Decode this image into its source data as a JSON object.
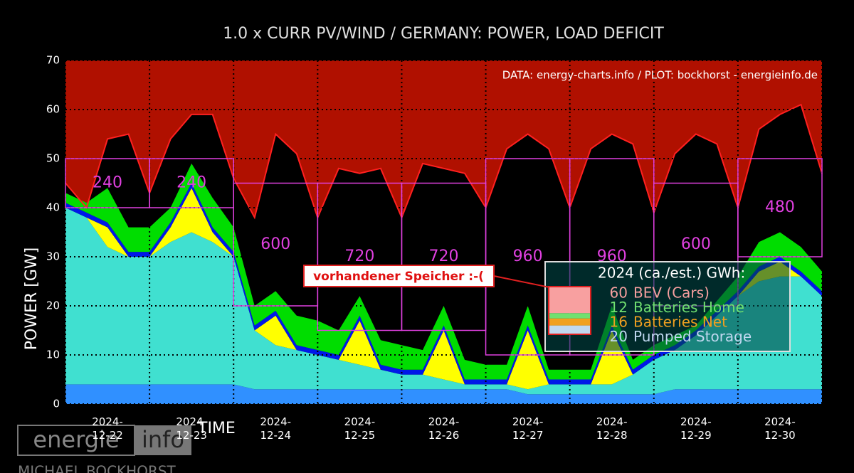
{
  "chart_data": {
    "type": "area",
    "title": "1.0 x CURR PV/WIND / GERMANY: POWER, LOAD  DEFICIT",
    "source": "DATA: energy-charts.info / PLOT: bockhorst - energieinfo.de",
    "y_label": "POWER [GW]",
    "x_label": "TIME",
    "xlim": [
      0,
      9
    ],
    "ylim": [
      0,
      70
    ],
    "yticks": [
      0,
      10,
      20,
      30,
      40,
      50,
      60,
      70
    ],
    "xgrid": [
      0,
      1,
      2,
      3,
      4,
      5,
      6,
      7,
      8,
      9
    ],
    "xticks": [
      {
        "value": 0.5,
        "label": "2024-12-22"
      },
      {
        "value": 1.5,
        "label": "2024-12-23"
      },
      {
        "value": 2.5,
        "label": "2024-12-24"
      },
      {
        "value": 3.5,
        "label": "2024-12-25"
      },
      {
        "value": 4.5,
        "label": "2024-12-26"
      },
      {
        "value": 5.5,
        "label": "2024-12-27"
      },
      {
        "value": 6.5,
        "label": "2024-12-28"
      },
      {
        "value": 7.5,
        "label": "2024-12-29"
      },
      {
        "value": 8.5,
        "label": "2024-12-30"
      }
    ],
    "grid": true,
    "x": [
      0,
      0.25,
      0.5,
      0.75,
      1,
      1.25,
      1.5,
      1.75,
      2,
      2.25,
      2.5,
      2.75,
      3,
      3.25,
      3.5,
      3.75,
      4,
      4.25,
      4.5,
      4.75,
      5,
      5.25,
      5.5,
      5.75,
      6,
      6.25,
      6.5,
      6.75,
      7,
      7.25,
      7.5,
      7.75,
      8,
      8.25,
      8.5,
      8.75,
      9
    ],
    "series": [
      {
        "color": "#3090ff",
        "values": [
          4,
          4,
          4,
          4,
          4,
          4,
          4,
          4,
          4,
          3,
          3,
          3,
          3,
          3,
          3,
          3,
          3,
          3,
          3,
          3,
          3,
          3,
          2,
          2,
          2,
          2,
          2,
          2,
          2,
          3,
          3,
          3,
          3,
          3,
          3,
          3,
          3
        ]
      },
      {
        "color": "#40e0d0",
        "values": [
          36,
          34,
          28,
          26,
          26,
          29,
          31,
          29,
          26,
          12,
          9,
          8,
          7,
          6,
          5,
          4,
          3,
          3,
          2,
          1,
          1,
          1,
          1,
          2,
          2,
          2,
          2,
          4,
          7,
          8,
          11,
          15,
          19,
          22,
          23,
          23,
          19
        ]
      },
      {
        "color": "#ffff00",
        "values": [
          0,
          0,
          4,
          0,
          0,
          3,
          9,
          2,
          0,
          0,
          6,
          0,
          0,
          0,
          9,
          0,
          0,
          0,
          10,
          0,
          0,
          0,
          12,
          0,
          0,
          0,
          11,
          0,
          0,
          0,
          0,
          0,
          0,
          2,
          3,
          0,
          0
        ]
      },
      {
        "color": "#0018e8",
        "values": [
          1,
          1,
          1,
          1,
          1,
          1,
          1,
          1,
          1,
          1,
          1,
          1,
          1,
          1,
          1,
          1,
          1,
          1,
          1,
          1,
          1,
          1,
          1,
          1,
          1,
          1,
          1,
          1,
          1,
          1,
          1,
          1,
          1,
          1,
          1,
          1,
          1
        ]
      },
      {
        "color": "#00dd00",
        "values": [
          2,
          2,
          7,
          5,
          5,
          3,
          4,
          6,
          5,
          4,
          4,
          6,
          6,
          5,
          4,
          5,
          5,
          4,
          4,
          4,
          3,
          3,
          4,
          2,
          2,
          2,
          4,
          2,
          2,
          2,
          1,
          2,
          3,
          5,
          5,
          5,
          4
        ]
      }
    ],
    "load": {
      "color": "#ff2020",
      "fill": "#b01000",
      "values": [
        45,
        40,
        54,
        55,
        43,
        54,
        59,
        59,
        46,
        38,
        55,
        51,
        38,
        48,
        47,
        48,
        38,
        49,
        48,
        47,
        40,
        52,
        55,
        52,
        40,
        52,
        55,
        53,
        39,
        51,
        55,
        53,
        40,
        56,
        59,
        61,
        47
      ]
    },
    "boxes_color": "#e040e0",
    "boxes": [
      {
        "ylim": [
          40,
          50
        ],
        "value": 240
      },
      {
        "ylim": [
          40,
          50
        ],
        "value": 240
      },
      {
        "ylim": [
          20,
          45
        ],
        "value": 600
      },
      {
        "ylim": [
          15,
          45
        ],
        "value": 720
      },
      {
        "ylim": [
          15,
          45
        ],
        "value": 720
      },
      {
        "ylim": [
          10,
          50
        ],
        "value": 960
      },
      {
        "ylim": [
          10,
          50
        ],
        "value": 960
      },
      {
        "ylim": [
          20,
          45
        ],
        "value": 600
      },
      {
        "ylim": [
          30,
          50
        ],
        "value": 480
      }
    ],
    "annotation": "vorhandener Speicher :-(",
    "legend": {
      "title": "2024 (ca./est.) GWh:",
      "items": [
        {
          "value": 60,
          "label": "BEV (Cars)",
          "color": "#f8a0a0"
        },
        {
          "value": 12,
          "label": "Batteries Home",
          "color": "#70e070"
        },
        {
          "value": 16,
          "label": "Batteries Net",
          "color": "#f0a020"
        },
        {
          "value": 20,
          "label": "Pumped Storage",
          "color": "#c0d8f0"
        }
      ]
    }
  },
  "logo": {
    "word1": "energie",
    "word2": "info",
    "name": "MICHAEL BOCKHORST"
  }
}
